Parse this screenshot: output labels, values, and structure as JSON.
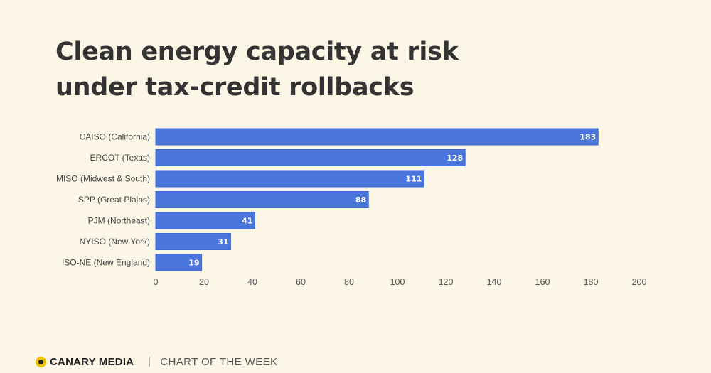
{
  "title_lines": [
    "Clean energy capacity at risk",
    "under tax-credit rollbacks"
  ],
  "colors": {
    "bar": "#4a76dc",
    "bar_edge": "#3d68cf",
    "background": "#fbf6e5",
    "logo_accent": "#f2c200"
  },
  "chart_data": {
    "type": "bar",
    "orientation": "horizontal",
    "categories": [
      "CAISO (California)",
      "ERCOT (Texas)",
      "MISO (Midwest & South)",
      "SPP (Great Plains)",
      "PJM (Northeast)",
      "NYISO (New York)",
      "ISO-NE (New England)"
    ],
    "values": [
      183,
      128,
      111,
      88,
      41,
      31,
      19
    ],
    "xlim": [
      0,
      200
    ],
    "x_ticks": [
      0,
      20,
      40,
      60,
      80,
      100,
      120,
      140,
      160,
      180,
      200
    ],
    "grid": false,
    "legend": "none",
    "data_labels": "inside-end"
  },
  "footer": {
    "brand": "CANARY MEDIA",
    "tagline": "CHART OF THE WEEK",
    "logo_icon": "canary-dot-icon"
  }
}
